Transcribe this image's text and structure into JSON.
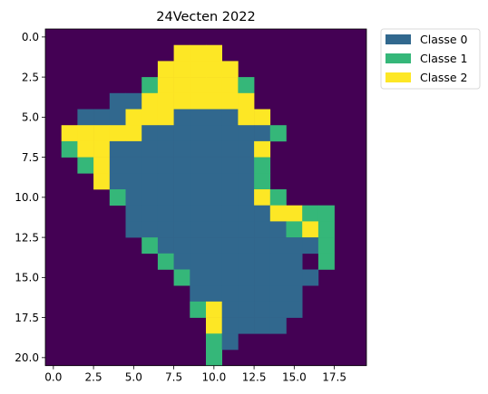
{
  "chart_data": {
    "type": "heatmap",
    "title": "24Vecten 2022",
    "xlabel": "",
    "ylabel": "",
    "x_ticks": [
      "0.0",
      "2.5",
      "5.0",
      "7.5",
      "10.0",
      "12.5",
      "15.0",
      "17.5"
    ],
    "y_ticks": [
      "0.0",
      "2.5",
      "5.0",
      "7.5",
      "10.0",
      "12.5",
      "15.0",
      "17.5",
      "20.0"
    ],
    "x_tick_values": [
      0,
      2.5,
      5,
      7.5,
      10,
      12.5,
      15,
      17.5
    ],
    "y_tick_values": [
      0,
      2.5,
      5,
      7.5,
      10,
      12.5,
      15,
      17.5,
      20
    ],
    "xlim": [
      -0.5,
      19.5
    ],
    "ylim": [
      20.5,
      -0.5
    ],
    "grid": false,
    "legend_position": "outside-top-right",
    "background_color": "#440154",
    "classes": [
      {
        "name": "Classe 0",
        "value": 0,
        "color": "#31688e"
      },
      {
        "name": "Classe 1",
        "value": 1,
        "color": "#35b779"
      },
      {
        "name": "Classe 2",
        "value": 2,
        "color": "#fde725"
      }
    ],
    "grid_rows": [
      "....................",
      "........222.........",
      ".......22222........",
      "......1222221.......",
      "....002222222.......",
      "..000222000022......",
      ".22222000000001.....",
      ".1220000000002......",
      "..120000000001......",
      "...20000000001......",
      "....10000000021.....",
      ".....0000000002211..",
      ".....0000000000121..",
      "......100000000001..",
      ".......100000000.1..",
      "........100000000...",
      ".........0000000....",
      ".........1200000....",
      "..........20000.....",
      "..........10........",
      "..........1........."
    ]
  }
}
